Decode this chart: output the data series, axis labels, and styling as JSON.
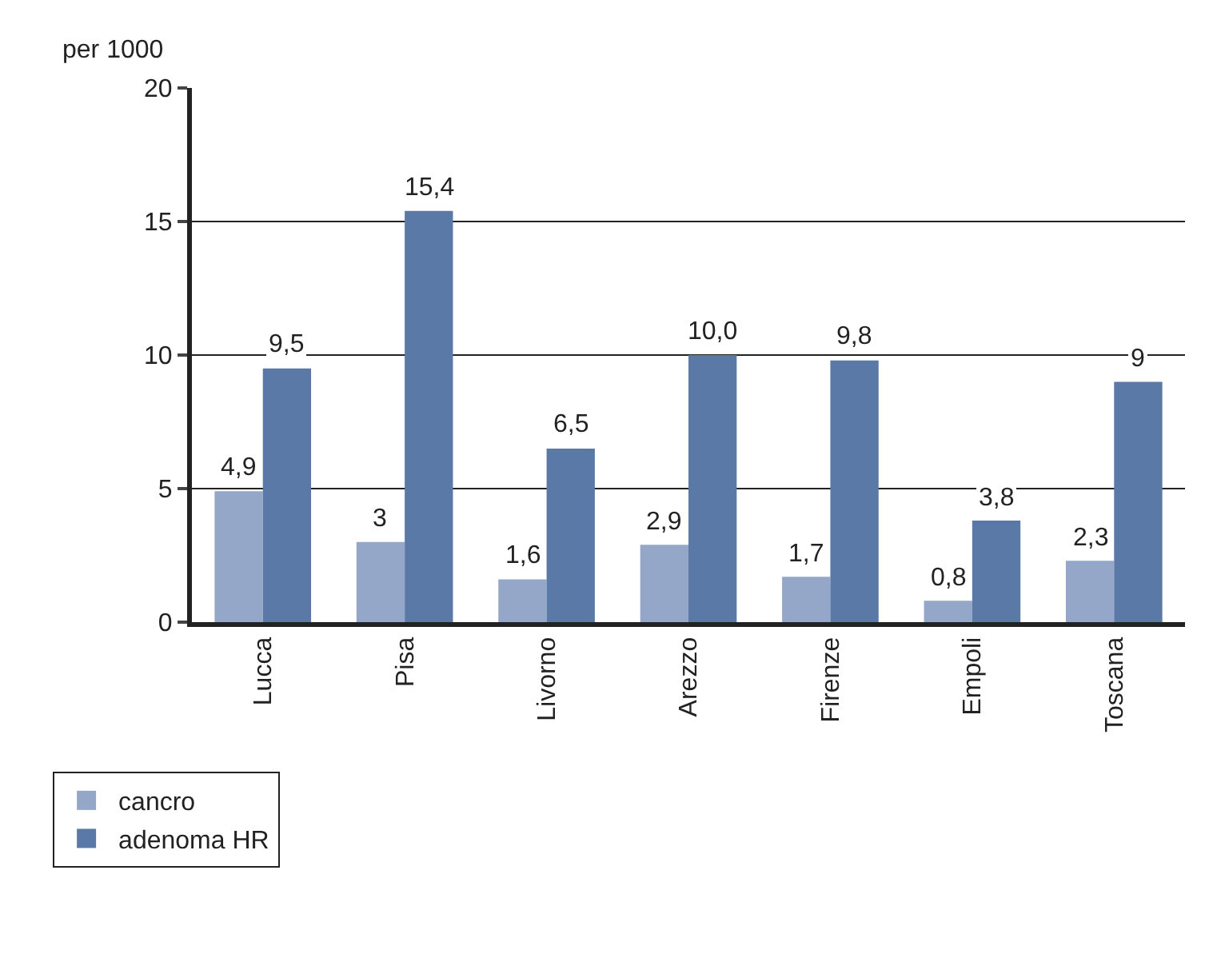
{
  "chart_data": {
    "type": "bar",
    "ylabel": "per 1000",
    "categories": [
      "Lucca",
      "Pisa",
      "Livorno",
      "Arezzo",
      "Firenze",
      "Empoli",
      "Toscana"
    ],
    "series": [
      {
        "name": "cancro",
        "color": "#95a7c8",
        "values": [
          4.9,
          3,
          1.6,
          2.9,
          1.7,
          0.8,
          2.3
        ],
        "value_labels": [
          "4,9",
          "3",
          "1,6",
          "2,9",
          "1,7",
          "0,8",
          "2,3"
        ]
      },
      {
        "name": "adenoma HR",
        "color": "#5b79a6",
        "values": [
          9.5,
          15.4,
          6.5,
          10.0,
          9.8,
          3.8,
          9
        ],
        "value_labels": [
          "9,5",
          "15,4",
          "6,5",
          "10,0",
          "9,8",
          "3,8",
          "9"
        ]
      }
    ],
    "ylim": [
      0,
      20
    ],
    "yticks": [
      0,
      5,
      10,
      15,
      20
    ],
    "grid": "y",
    "legend": "bottom left"
  }
}
